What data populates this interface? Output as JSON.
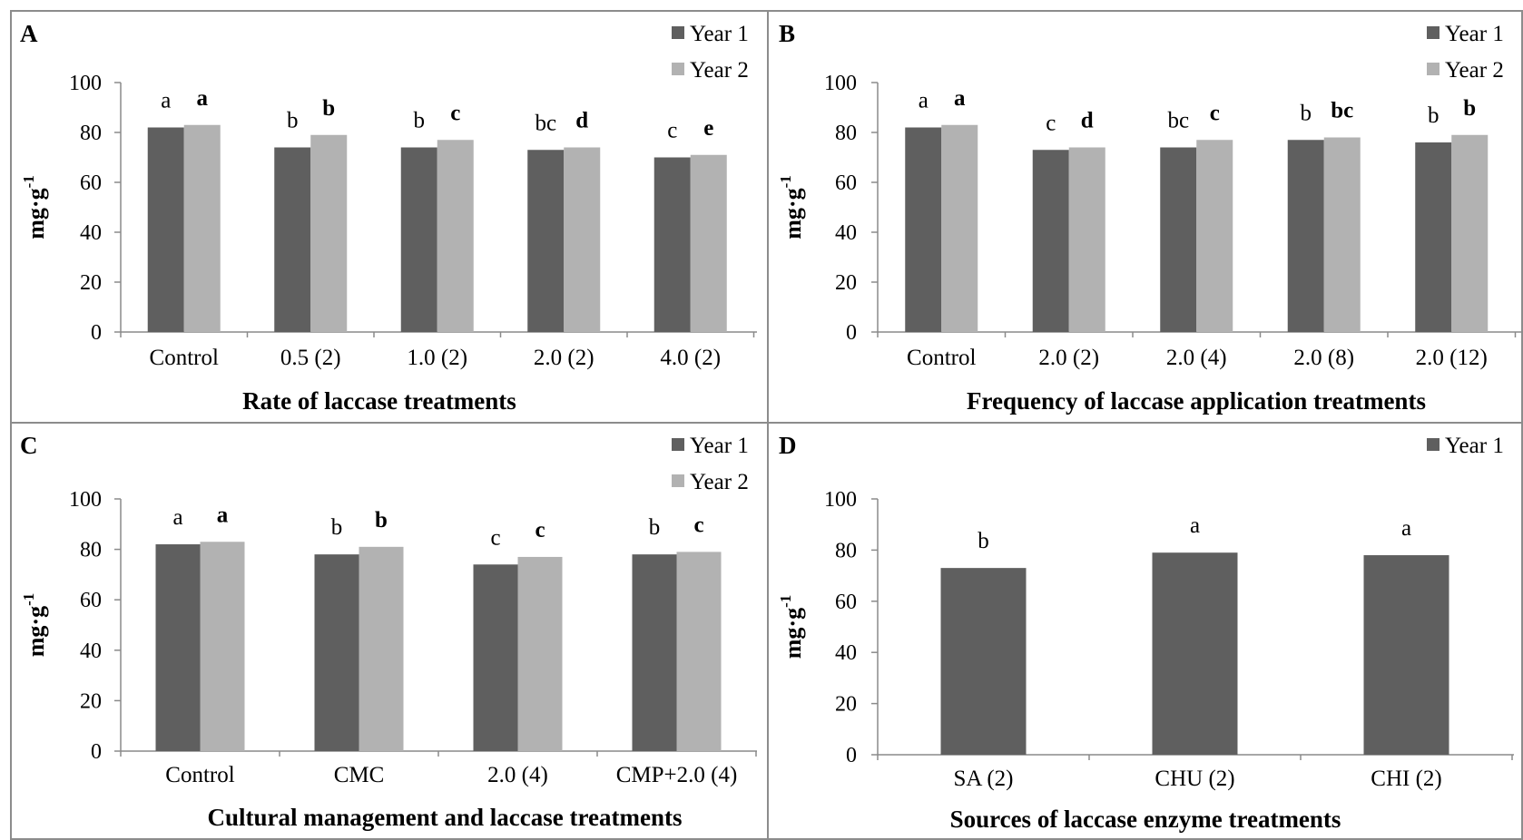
{
  "colors": {
    "year1": "#5f5f5f",
    "year2": "#b2b2b2",
    "axis": "#8a8a8a",
    "frame": "#8c8c8c"
  },
  "chart_data": [
    {
      "type": "bar",
      "panel": "A",
      "xlabel": "Rate of laccase treatments",
      "ylabel": "mg·g",
      "ylabel_sup": "-1",
      "ylim": [
        0,
        100
      ],
      "yticks": [
        0,
        20,
        40,
        60,
        80,
        100
      ],
      "legend_position": "top-right",
      "categories": [
        "Control",
        "0.5 (2)",
        "1.0 (2)",
        "2.0 (2)",
        "4.0 (2)"
      ],
      "series": [
        {
          "name": "Year 1",
          "values": [
            82,
            74,
            74,
            73,
            70
          ],
          "labels": [
            "a",
            "b",
            "b",
            "bc",
            "c"
          ],
          "bold": false
        },
        {
          "name": "Year 2",
          "values": [
            83,
            79,
            77,
            74,
            71
          ],
          "labels": [
            "a",
            "b",
            "c",
            "d",
            "e"
          ],
          "bold": true
        }
      ]
    },
    {
      "type": "bar",
      "panel": "B",
      "xlabel": "Frequency of laccase application treatments",
      "ylabel": "mg·g",
      "ylabel_sup": "-1",
      "ylim": [
        0,
        100
      ],
      "yticks": [
        0,
        20,
        40,
        60,
        80,
        100
      ],
      "legend_position": "top-right",
      "categories": [
        "Control",
        "2.0 (2)",
        "2.0 (4)",
        "2.0 (8)",
        "2.0 (12)"
      ],
      "series": [
        {
          "name": "Year 1",
          "values": [
            82,
            73,
            74,
            77,
            76
          ],
          "labels": [
            "a",
            "c",
            "bc",
            "b",
            "b"
          ],
          "bold": false
        },
        {
          "name": "Year 2",
          "values": [
            83,
            74,
            77,
            78,
            79
          ],
          "labels": [
            "a",
            "d",
            "c",
            "bc",
            "b"
          ],
          "bold": true
        }
      ]
    },
    {
      "type": "bar",
      "panel": "C",
      "xlabel": "Cultural management and laccase treatments",
      "ylabel": "mg·g",
      "ylabel_sup": "-1",
      "ylim": [
        0,
        100
      ],
      "yticks": [
        0,
        20,
        40,
        60,
        80,
        100
      ],
      "legend_position": "top-right",
      "categories": [
        "Control",
        "CMC",
        "2.0 (4)",
        "CMP+2.0 (4)"
      ],
      "series": [
        {
          "name": "Year 1",
          "values": [
            82,
            78,
            74,
            78
          ],
          "labels": [
            "a",
            "b",
            "c",
            "b"
          ],
          "bold": false
        },
        {
          "name": "Year 2",
          "values": [
            83,
            81,
            77,
            79
          ],
          "labels": [
            "a",
            "b",
            "c",
            "c"
          ],
          "bold": true
        }
      ]
    },
    {
      "type": "bar",
      "panel": "D",
      "xlabel": "Sources of laccase enzyme treatments",
      "ylabel": "mg·g",
      "ylabel_sup": "-1",
      "ylim": [
        0,
        100
      ],
      "yticks": [
        0,
        20,
        40,
        60,
        80,
        100
      ],
      "legend_position": "top-right",
      "categories": [
        "SA (2)",
        "CHU (2)",
        "CHI (2)"
      ],
      "series": [
        {
          "name": "Year 1",
          "values": [
            73,
            79,
            78
          ],
          "labels": [
            "b",
            "a",
            "a"
          ],
          "bold": false
        }
      ]
    }
  ]
}
